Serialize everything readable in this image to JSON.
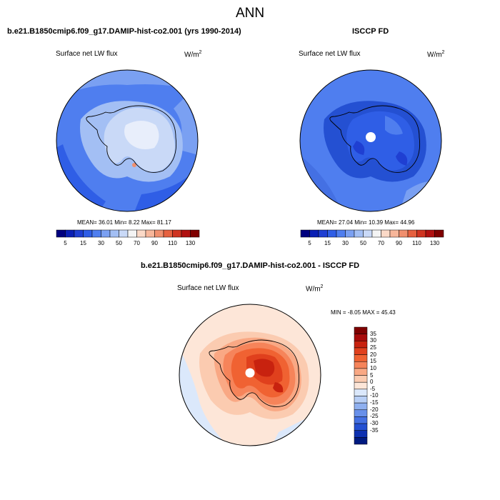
{
  "figure": {
    "title": "ANN"
  },
  "panels": [
    {
      "case_title": "b.e21.B1850cmip6.f09_g17.DAMIP-hist-co2.001 (yrs 1990-2014)",
      "variable": "Surface net LW flux",
      "units_base": "W/m",
      "units_exp": "2",
      "stats": "MEAN=  36.01  Min=   8.22  Max=  81.17"
    },
    {
      "case_title": "ISCCP FD",
      "variable": "Surface net LW flux",
      "units_base": "W/m",
      "units_exp": "2",
      "stats": "MEAN=  27.04  Min=  10.39  Max=  44.96"
    },
    {
      "case_title": "b.e21.B1850cmip6.f09_g17.DAMIP-hist-co2.001 - ISCCP FD",
      "variable": "Surface net LW flux",
      "units_base": "W/m",
      "units_exp": "2",
      "stats": "MIN =  -8.05 MAX =  45.43"
    }
  ],
  "abs_colorbar": {
    "ticks": [
      "5",
      "15",
      "30",
      "50",
      "70",
      "90",
      "110",
      "130"
    ],
    "colors": [
      "#00007f",
      "#0a1fb4",
      "#1f3fd2",
      "#2f5ee6",
      "#4f7eef",
      "#7aa0f2",
      "#a3bff4",
      "#c9d9f7",
      "#f4f4f4",
      "#fbd9c7",
      "#f7b69a",
      "#f08f6e",
      "#e6613f",
      "#cf3421",
      "#b01010",
      "#7f0000"
    ]
  },
  "diff_colorbar": {
    "ticks": [
      "35",
      "30",
      "25",
      "20",
      "15",
      "10",
      "5",
      "0",
      "-5",
      "-10",
      "-15",
      "-20",
      "-25",
      "-30",
      "-35"
    ],
    "colors": [
      "#7f0000",
      "#a80a0a",
      "#c8220f",
      "#e0401d",
      "#f06232",
      "#f6845a",
      "#f9a884",
      "#fbcbb0",
      "#fde6d8",
      "#dbe8fb",
      "#b8cff6",
      "#8fb0f0",
      "#6890ea",
      "#4470e3",
      "#2450d2",
      "#0d30b0",
      "#001a80"
    ]
  }
}
